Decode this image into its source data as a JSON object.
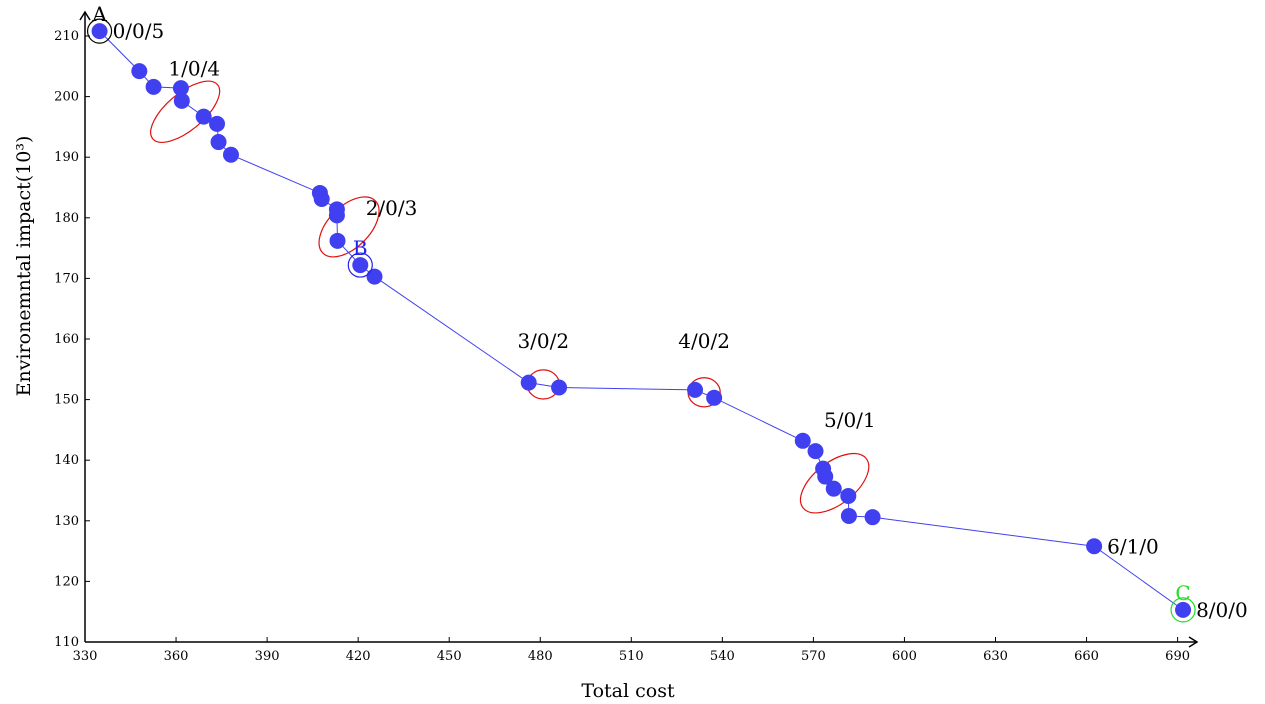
{
  "chart_data": {
    "type": "scatter",
    "xlabel": "Total cost",
    "ylabel": "Environemntal impact(10³)",
    "xlim": [
      330,
      700
    ],
    "ylim": [
      110,
      215
    ],
    "x_ticks": [
      330,
      360,
      390,
      420,
      450,
      480,
      510,
      540,
      570,
      600,
      630,
      660,
      690
    ],
    "y_ticks": [
      110,
      120,
      130,
      140,
      150,
      160,
      170,
      180,
      190,
      200,
      210
    ],
    "grid": false,
    "colors": {
      "points": "#4040f0",
      "line": "#4040f0",
      "clusters": "#e01010",
      "highlight_c": "#22dd22",
      "highlight_a": "#000000"
    },
    "series": [
      {
        "points": [
          [
            334.8,
            210.8
          ],
          [
            347.9,
            204.2
          ],
          [
            352.6,
            201.6
          ],
          [
            361.6,
            201.4
          ],
          [
            361.9,
            199.3
          ],
          [
            369.1,
            196.7
          ],
          [
            373.5,
            195.5
          ],
          [
            374.0,
            192.5
          ],
          [
            378.1,
            190.4
          ],
          [
            407.4,
            184.1
          ],
          [
            408.0,
            183.1
          ],
          [
            413.0,
            181.4
          ],
          [
            413.0,
            180.4
          ],
          [
            413.2,
            176.2
          ],
          [
            420.7,
            172.2
          ],
          [
            425.4,
            170.3
          ],
          [
            476.2,
            152.8
          ],
          [
            486.2,
            152.0
          ],
          [
            531.0,
            151.6
          ],
          [
            537.3,
            150.3
          ],
          [
            566.5,
            143.2
          ],
          [
            570.7,
            141.5
          ],
          [
            573.2,
            138.6
          ],
          [
            573.9,
            137.3
          ],
          [
            576.7,
            135.3
          ],
          [
            581.5,
            134.1
          ],
          [
            581.7,
            130.8
          ],
          [
            589.5,
            130.6
          ],
          [
            662.5,
            125.8
          ],
          [
            691.8,
            115.3
          ]
        ]
      }
    ],
    "clusters": [
      {
        "label": "1/0/4",
        "cx": 363,
        "cy": 197.5,
        "rx": 13.9,
        "ry": 6.1,
        "tilt": -40
      },
      {
        "label": "2/0/3",
        "cx": 417,
        "cy": 178.5,
        "rx": 12.2,
        "ry": 6.8,
        "tilt": -45
      },
      {
        "label": "3/0/2",
        "cx": 481,
        "cy": 152.5,
        "rx": 5.3,
        "ry": 4.8,
        "tilt": 0
      },
      {
        "label": "4/0/2",
        "cx": 534,
        "cy": 151.2,
        "rx": 5.3,
        "ry": 4.8,
        "tilt": 0
      },
      {
        "label": "5/0/1",
        "cx": 577,
        "cy": 136.2,
        "rx": 13.2,
        "ry": 6.9,
        "tilt": -38
      }
    ],
    "annotations": [
      {
        "text": "0/0/5",
        "x": 334.8,
        "y": 210.8,
        "anchor": "right"
      },
      {
        "text": "1/0/4",
        "x": 366,
        "y": 203.5,
        "anchor": "above"
      },
      {
        "text": "2/0/3",
        "x": 431,
        "y": 180.5,
        "anchor": "above"
      },
      {
        "text": "3/0/2",
        "x": 481,
        "y": 158.5,
        "anchor": "above"
      },
      {
        "text": "4/0/2",
        "x": 534,
        "y": 158.5,
        "anchor": "above"
      },
      {
        "text": "5/0/1",
        "x": 582,
        "y": 145.5,
        "anchor": "above"
      },
      {
        "text": "6/1/0",
        "x": 662.5,
        "y": 125.8,
        "anchor": "right"
      },
      {
        "text": "8/0/0",
        "x": 691.8,
        "y": 115.3,
        "anchor": "right"
      }
    ],
    "highlights": [
      {
        "text": "A",
        "x": 334.8,
        "y": 210.8,
        "color": "#000000"
      },
      {
        "text": "B",
        "x": 420.7,
        "y": 172.2,
        "color": "#2222ee"
      },
      {
        "text": "C",
        "x": 691.8,
        "y": 115.3,
        "color": "#22dd22"
      }
    ]
  }
}
